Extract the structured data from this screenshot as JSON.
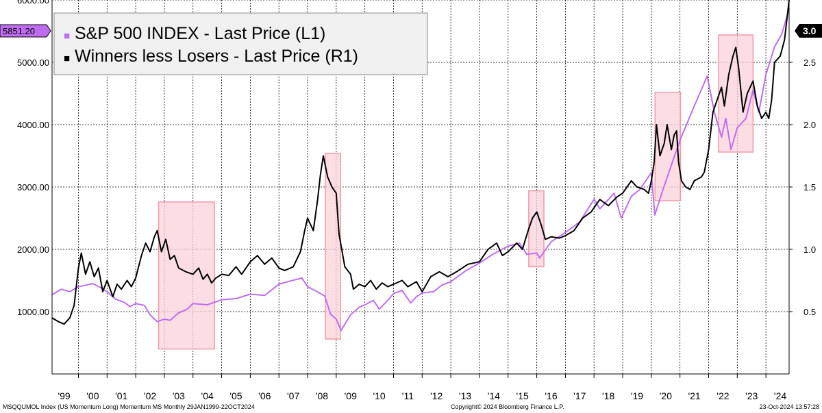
{
  "chart_data": {
    "type": "line",
    "x_start": 1999.08,
    "x_end": 2024.81,
    "x_ticks": [
      {
        "label": "'99",
        "year": 1999
      },
      {
        "label": "'00",
        "year": 2000
      },
      {
        "label": "'01",
        "year": 2001
      },
      {
        "label": "'02",
        "year": 2002
      },
      {
        "label": "'03",
        "year": 2003
      },
      {
        "label": "'04",
        "year": 2004
      },
      {
        "label": "'05",
        "year": 2005
      },
      {
        "label": "'06",
        "year": 2006
      },
      {
        "label": "'07",
        "year": 2007
      },
      {
        "label": "'08",
        "year": 2008
      },
      {
        "label": "'09",
        "year": 2009
      },
      {
        "label": "'10",
        "year": 2010
      },
      {
        "label": "'11",
        "year": 2011
      },
      {
        "label": "'12",
        "year": 2012
      },
      {
        "label": "'13",
        "year": 2013
      },
      {
        "label": "'14",
        "year": 2014
      },
      {
        "label": "'15",
        "year": 2015
      },
      {
        "label": "'16",
        "year": 2016
      },
      {
        "label": "'17",
        "year": 2017
      },
      {
        "label": "'18",
        "year": 2018
      },
      {
        "label": "'19",
        "year": 2019
      },
      {
        "label": "'20",
        "year": 2020
      },
      {
        "label": "'21",
        "year": 2021
      },
      {
        "label": "'22",
        "year": 2022
      },
      {
        "label": "'23",
        "year": 2023
      },
      {
        "label": "'24",
        "year": 2024
      }
    ],
    "left_axis": {
      "ylim": [
        0,
        6000
      ],
      "ticks": [
        {
          "value": 1000,
          "label": "1000.00"
        },
        {
          "value": 2000,
          "label": "2000.00"
        },
        {
          "value": 3000,
          "label": "3000.00"
        },
        {
          "value": 4000,
          "label": "4000.00"
        },
        {
          "value": 5000,
          "label": "5000.00"
        },
        {
          "value": 6000,
          "label": "6000.00"
        }
      ]
    },
    "right_axis": {
      "ylim": [
        0.0,
        3.0
      ],
      "ticks": [
        {
          "value": 0.5,
          "label": "0.5"
        },
        {
          "value": 1.0,
          "label": "1.0"
        },
        {
          "value": 1.5,
          "label": "1.5"
        },
        {
          "value": 2.0,
          "label": "2.0"
        },
        {
          "value": 2.5,
          "label": "2.5"
        }
      ]
    },
    "legend": {
      "position": "top-left",
      "items": [
        {
          "marker": "■",
          "label": "S&P 500 INDEX - Last Price  (L1)",
          "color": "#bf6df0"
        },
        {
          "marker": "■",
          "label": "Winners less Losers - Last Price  (R1)",
          "color": "#000000"
        }
      ]
    },
    "last_values": {
      "left": {
        "label": "5851.20",
        "color": "#bf6df0"
      },
      "right": {
        "label": "3.0",
        "color": "#000000"
      }
    },
    "series": [
      {
        "name": "S&P 500 INDEX - Last Price  (L1)",
        "axis": "left",
        "color": "#bf6df0",
        "points": [
          [
            1999.08,
            1270
          ],
          [
            1999.4,
            1360
          ],
          [
            1999.7,
            1320
          ],
          [
            2000.0,
            1400
          ],
          [
            2000.2,
            1420
          ],
          [
            2000.5,
            1450
          ],
          [
            2000.8,
            1380
          ],
          [
            2001.0,
            1320
          ],
          [
            2001.3,
            1200
          ],
          [
            2001.6,
            1150
          ],
          [
            2001.8,
            1080
          ],
          [
            2002.0,
            1130
          ],
          [
            2002.3,
            1100
          ],
          [
            2002.5,
            950
          ],
          [
            2002.75,
            840
          ],
          [
            2003.0,
            880
          ],
          [
            2003.2,
            860
          ],
          [
            2003.5,
            980
          ],
          [
            2003.8,
            1040
          ],
          [
            2004.0,
            1130
          ],
          [
            2004.5,
            1110
          ],
          [
            2005.0,
            1190
          ],
          [
            2005.5,
            1210
          ],
          [
            2006.0,
            1280
          ],
          [
            2006.5,
            1260
          ],
          [
            2007.0,
            1440
          ],
          [
            2007.3,
            1480
          ],
          [
            2007.8,
            1540
          ],
          [
            2008.0,
            1400
          ],
          [
            2008.3,
            1330
          ],
          [
            2008.6,
            1250
          ],
          [
            2008.8,
            960
          ],
          [
            2009.0,
            880
          ],
          [
            2009.17,
            700
          ],
          [
            2009.5,
            950
          ],
          [
            2009.8,
            1070
          ],
          [
            2010.0,
            1110
          ],
          [
            2010.3,
            1180
          ],
          [
            2010.5,
            1040
          ],
          [
            2010.8,
            1180
          ],
          [
            2011.0,
            1290
          ],
          [
            2011.3,
            1340
          ],
          [
            2011.6,
            1140
          ],
          [
            2011.8,
            1240
          ],
          [
            2012.0,
            1300
          ],
          [
            2012.4,
            1320
          ],
          [
            2012.7,
            1430
          ],
          [
            2013.0,
            1480
          ],
          [
            2013.5,
            1650
          ],
          [
            2014.0,
            1780
          ],
          [
            2014.5,
            1930
          ],
          [
            2015.0,
            2050
          ],
          [
            2015.4,
            2100
          ],
          [
            2015.65,
            1920
          ],
          [
            2016.0,
            1940
          ],
          [
            2016.1,
            1860
          ],
          [
            2016.5,
            2120
          ],
          [
            2017.0,
            2270
          ],
          [
            2017.5,
            2440
          ],
          [
            2018.0,
            2800
          ],
          [
            2018.2,
            2650
          ],
          [
            2018.7,
            2900
          ],
          [
            2018.95,
            2500
          ],
          [
            2019.3,
            2850
          ],
          [
            2019.6,
            2960
          ],
          [
            2020.0,
            3230
          ],
          [
            2020.12,
            2550
          ],
          [
            2020.4,
            2950
          ],
          [
            2020.7,
            3350
          ],
          [
            2021.0,
            3750
          ],
          [
            2021.5,
            4300
          ],
          [
            2021.95,
            4780
          ],
          [
            2022.2,
            4200
          ],
          [
            2022.45,
            3800
          ],
          [
            2022.6,
            4100
          ],
          [
            2022.78,
            3600
          ],
          [
            2023.0,
            3950
          ],
          [
            2023.3,
            4100
          ],
          [
            2023.55,
            4550
          ],
          [
            2023.75,
            4200
          ],
          [
            2024.0,
            4800
          ],
          [
            2024.3,
            5250
          ],
          [
            2024.55,
            5450
          ],
          [
            2024.81,
            5851.2
          ]
        ]
      },
      {
        "name": "Winners less Losers - Last Price  (R1)",
        "axis": "right",
        "color": "#000000",
        "points": [
          [
            1999.08,
            0.45
          ],
          [
            1999.3,
            0.42
          ],
          [
            1999.5,
            0.4
          ],
          [
            1999.7,
            0.45
          ],
          [
            1999.85,
            0.55
          ],
          [
            2000.0,
            0.85
          ],
          [
            2000.1,
            0.97
          ],
          [
            2000.25,
            0.8
          ],
          [
            2000.4,
            0.9
          ],
          [
            2000.55,
            0.78
          ],
          [
            2000.7,
            0.85
          ],
          [
            2000.85,
            0.66
          ],
          [
            2001.0,
            0.75
          ],
          [
            2001.2,
            0.62
          ],
          [
            2001.35,
            0.72
          ],
          [
            2001.5,
            0.68
          ],
          [
            2001.7,
            0.75
          ],
          [
            2001.85,
            0.7
          ],
          [
            2002.0,
            0.77
          ],
          [
            2002.2,
            0.95
          ],
          [
            2002.35,
            1.05
          ],
          [
            2002.5,
            0.98
          ],
          [
            2002.65,
            1.1
          ],
          [
            2002.75,
            1.15
          ],
          [
            2002.9,
            0.98
          ],
          [
            2003.05,
            1.08
          ],
          [
            2003.2,
            0.92
          ],
          [
            2003.35,
            0.95
          ],
          [
            2003.5,
            0.85
          ],
          [
            2003.75,
            0.82
          ],
          [
            2004.0,
            0.8
          ],
          [
            2004.2,
            0.85
          ],
          [
            2004.35,
            0.76
          ],
          [
            2004.5,
            0.8
          ],
          [
            2004.65,
            0.73
          ],
          [
            2004.8,
            0.77
          ],
          [
            2005.0,
            0.8
          ],
          [
            2005.25,
            0.79
          ],
          [
            2005.5,
            0.86
          ],
          [
            2005.7,
            0.8
          ],
          [
            2006.0,
            0.9
          ],
          [
            2006.25,
            0.95
          ],
          [
            2006.5,
            0.88
          ],
          [
            2006.75,
            0.93
          ],
          [
            2007.0,
            0.85
          ],
          [
            2007.2,
            0.83
          ],
          [
            2007.5,
            0.86
          ],
          [
            2007.75,
            0.98
          ],
          [
            2007.9,
            1.15
          ],
          [
            2008.0,
            1.25
          ],
          [
            2008.2,
            1.15
          ],
          [
            2008.35,
            1.4
          ],
          [
            2008.45,
            1.6
          ],
          [
            2008.55,
            1.75
          ],
          [
            2008.7,
            1.58
          ],
          [
            2008.85,
            1.5
          ],
          [
            2009.0,
            1.45
          ],
          [
            2009.1,
            1.12
          ],
          [
            2009.3,
            0.86
          ],
          [
            2009.5,
            0.8
          ],
          [
            2009.6,
            0.68
          ],
          [
            2009.8,
            0.72
          ],
          [
            2010.0,
            0.7
          ],
          [
            2010.2,
            0.75
          ],
          [
            2010.4,
            0.68
          ],
          [
            2010.6,
            0.73
          ],
          [
            2010.8,
            0.7
          ],
          [
            2011.0,
            0.72
          ],
          [
            2011.3,
            0.75
          ],
          [
            2011.5,
            0.7
          ],
          [
            2011.8,
            0.74
          ],
          [
            2012.0,
            0.66
          ],
          [
            2012.3,
            0.78
          ],
          [
            2012.6,
            0.82
          ],
          [
            2012.9,
            0.78
          ],
          [
            2013.2,
            0.82
          ],
          [
            2013.6,
            0.88
          ],
          [
            2014.0,
            0.9
          ],
          [
            2014.3,
            1.0
          ],
          [
            2014.6,
            1.05
          ],
          [
            2014.8,
            0.95
          ],
          [
            2015.0,
            0.98
          ],
          [
            2015.3,
            1.05
          ],
          [
            2015.5,
            1.0
          ],
          [
            2015.7,
            1.15
          ],
          [
            2015.85,
            1.25
          ],
          [
            2016.0,
            1.3
          ],
          [
            2016.15,
            1.2
          ],
          [
            2016.3,
            1.08
          ],
          [
            2016.5,
            1.1
          ],
          [
            2016.8,
            1.09
          ],
          [
            2017.0,
            1.11
          ],
          [
            2017.3,
            1.15
          ],
          [
            2017.6,
            1.25
          ],
          [
            2017.9,
            1.3
          ],
          [
            2018.2,
            1.4
          ],
          [
            2018.5,
            1.35
          ],
          [
            2018.8,
            1.42
          ],
          [
            2019.0,
            1.45
          ],
          [
            2019.3,
            1.55
          ],
          [
            2019.5,
            1.5
          ],
          [
            2019.75,
            1.48
          ],
          [
            2019.9,
            1.45
          ],
          [
            2020.0,
            1.55
          ],
          [
            2020.1,
            1.7
          ],
          [
            2020.18,
            2.0
          ],
          [
            2020.3,
            1.75
          ],
          [
            2020.45,
            1.85
          ],
          [
            2020.55,
            2.0
          ],
          [
            2020.7,
            1.8
          ],
          [
            2020.8,
            1.92
          ],
          [
            2020.88,
            1.95
          ],
          [
            2020.95,
            1.7
          ],
          [
            2021.05,
            1.55
          ],
          [
            2021.2,
            1.5
          ],
          [
            2021.35,
            1.48
          ],
          [
            2021.5,
            1.55
          ],
          [
            2021.75,
            1.58
          ],
          [
            2021.85,
            1.62
          ],
          [
            2022.0,
            1.8
          ],
          [
            2022.15,
            2.1
          ],
          [
            2022.3,
            2.2
          ],
          [
            2022.45,
            2.3
          ],
          [
            2022.55,
            2.15
          ],
          [
            2022.7,
            2.4
          ],
          [
            2022.85,
            2.55
          ],
          [
            2022.95,
            2.62
          ],
          [
            2023.05,
            2.45
          ],
          [
            2023.2,
            2.1
          ],
          [
            2023.35,
            2.25
          ],
          [
            2023.55,
            2.35
          ],
          [
            2023.7,
            2.15
          ],
          [
            2023.85,
            2.05
          ],
          [
            2024.0,
            2.1
          ],
          [
            2024.1,
            2.05
          ],
          [
            2024.2,
            2.2
          ],
          [
            2024.3,
            2.5
          ],
          [
            2024.5,
            2.55
          ],
          [
            2024.65,
            2.68
          ],
          [
            2024.81,
            3.0
          ]
        ]
      }
    ],
    "highlight_regions": [
      {
        "x_start": 2002.8,
        "x_end": 2004.75,
        "y_low": 0.2,
        "y_high": 1.38
      },
      {
        "x_start": 2008.62,
        "x_end": 2009.15,
        "y_low": 0.28,
        "y_high": 1.77
      },
      {
        "x_start": 2015.72,
        "x_end": 2016.25,
        "y_low": 0.86,
        "y_high": 1.47
      },
      {
        "x_start": 2020.13,
        "x_end": 2021.02,
        "y_low": 1.39,
        "y_high": 2.26
      },
      {
        "x_start": 2022.35,
        "x_end": 2023.55,
        "y_low": 1.78,
        "y_high": 2.72
      }
    ]
  },
  "footer": {
    "left": "MSQQUMOL Index (US Momentum Long) Momentum MS  Monthly 29JAN1999-22OCT2024",
    "center": "Copyright© 2024 Bloomberg Finance L.P.",
    "right": "23-Oct-2024 13:57:28"
  }
}
